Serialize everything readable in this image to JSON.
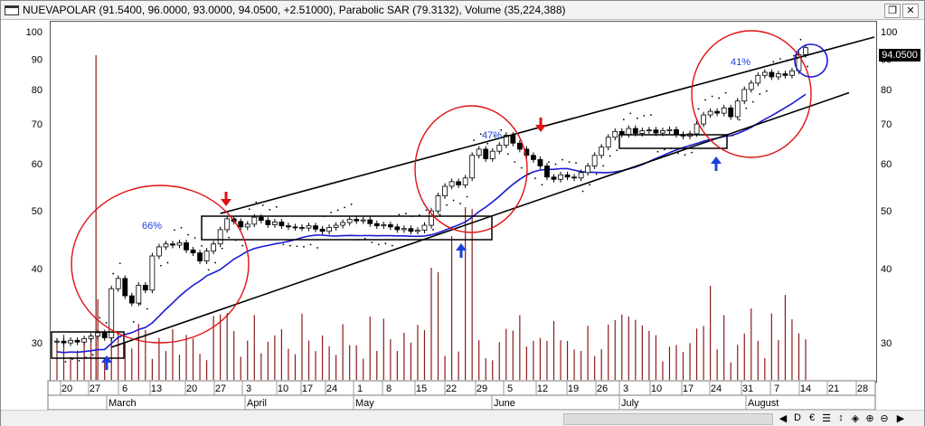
{
  "window": {
    "title": "NUEVAPOLAR (91.5400, 96.0000, 93.0000, 94.0500, +2.51000), Parabolic SAR (79.3132), Volume (35,224,388)",
    "restore_label": "2",
    "close_label": "✕"
  },
  "last_price": "94.0500",
  "footer": {
    "tools": [
      "◀",
      "D",
      "€",
      "☰",
      "↕",
      "◈",
      "⊕",
      "⊖",
      "▶"
    ]
  },
  "chart_data": {
    "type": "candlestick",
    "title": "NUEVAPOLAR",
    "y_scale": "log",
    "ylim": [
      26,
      104
    ],
    "y_ticks_left": [
      30,
      40,
      50,
      60,
      70,
      80,
      90,
      100
    ],
    "y_ticks_right": [
      30,
      40,
      50,
      60,
      70,
      80,
      90,
      100
    ],
    "last": {
      "open": 91.54,
      "high": 96.0,
      "low": 93.0,
      "close": 94.05,
      "change": 2.51
    },
    "parabolic_sar_last": 79.3132,
    "volume_last": 35224388,
    "x_day_labels": [
      "20",
      "27",
      "6",
      "13",
      "20",
      "27",
      "3",
      "10",
      "17",
      "24",
      "1",
      "8",
      "15",
      "22",
      "29",
      "5",
      "12",
      "19",
      "26",
      "3",
      "10",
      "17",
      "24",
      "31",
      "7",
      "14",
      "21",
      "28"
    ],
    "x_month_labels": [
      "March",
      "April",
      "May",
      "June",
      "July",
      "August"
    ],
    "annotations": [
      {
        "text": "66%",
        "color": "#1f3fd6"
      },
      {
        "text": "47%",
        "color": "#1f3fd6"
      },
      {
        "text": "41%",
        "color": "#1f3fd6"
      }
    ],
    "moving_average_color": "#1a1ad6",
    "trendline_color": "#000000",
    "circle_color": "#e01010",
    "highlight_circle_color": "#1a1ad6",
    "volume_color": "#8b1a1a",
    "down_arrow_color": "#e01010",
    "up_arrow_color": "#1a3fe0",
    "closes": [
      30.2,
      30.0,
      30.3,
      30.1,
      30.5,
      30.8,
      31.2,
      30.6,
      37.0,
      38.5,
      36.0,
      35.0,
      37.5,
      36.8,
      42.0,
      43.5,
      44.0,
      43.8,
      44.2,
      43.0,
      42.5,
      41.2,
      42.8,
      44.0,
      46.5,
      48.5,
      48.0,
      47.0,
      47.5,
      48.8,
      48.2,
      47.4,
      47.9,
      47.2,
      47.0,
      46.9,
      46.8,
      47.2,
      46.6,
      46.2,
      46.9,
      47.3,
      47.8,
      48.4,
      48.1,
      48.3,
      47.6,
      47.2,
      47.4,
      47.0,
      46.5,
      46.7,
      46.2,
      46.4,
      47.3,
      50.0,
      53.0,
      55.0,
      56.0,
      55.3,
      56.8,
      62.0,
      63.5,
      61.2,
      63.0,
      64.5,
      67.0,
      65.0,
      63.5,
      62.0,
      61.0,
      59.5,
      57.0,
      56.5,
      57.5,
      57.0,
      56.8,
      58.0,
      59.5,
      62.0,
      64.0,
      66.5,
      68.0,
      67.2,
      68.8,
      67.5,
      68.2,
      68.4,
      67.6,
      68.2,
      68.5,
      67.2,
      66.8,
      67.4,
      70.0,
      72.5,
      73.5,
      73.0,
      74.5,
      72.0,
      76.5,
      80.0,
      82.0,
      84.5,
      85.5,
      84.0,
      85.0,
      84.5,
      86.0,
      91.54,
      94.05
    ]
  }
}
